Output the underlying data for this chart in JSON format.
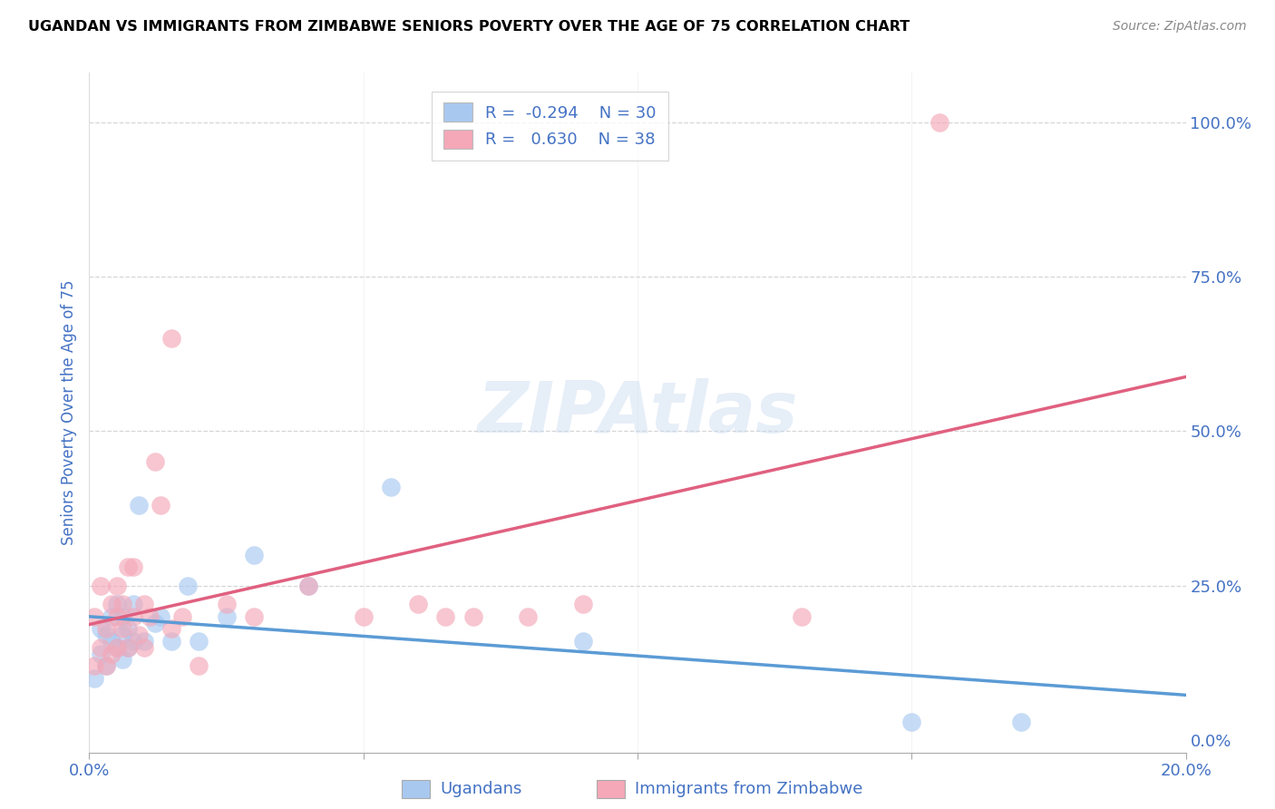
{
  "title": "UGANDAN VS IMMIGRANTS FROM ZIMBABWE SENIORS POVERTY OVER THE AGE OF 75 CORRELATION CHART",
  "source": "Source: ZipAtlas.com",
  "ylabel": "Seniors Poverty Over the Age of 75",
  "xlim": [
    0.0,
    0.2
  ],
  "ylim": [
    -0.02,
    1.08
  ],
  "x_ticks": [
    0.0,
    0.05,
    0.1,
    0.15,
    0.2
  ],
  "x_tick_labels": [
    "0.0%",
    "",
    "",
    "",
    "20.0%"
  ],
  "y_ticks_right": [
    0.0,
    0.25,
    0.5,
    0.75,
    1.0
  ],
  "y_tick_labels_right": [
    "0.0%",
    "25.0%",
    "50.0%",
    "75.0%",
    "100.0%"
  ],
  "ugandan_color": "#a8c8f0",
  "zimbabwe_color": "#f4a8b8",
  "ugandan_line_color": "#5b9bd5",
  "zimbabwe_line_color": "#e06080",
  "ugandan_R": -0.294,
  "ugandan_N": 30,
  "zimbabwe_R": 0.63,
  "zimbabwe_N": 38,
  "watermark": "ZIPAtlas",
  "legend_label_1": "Ugandans",
  "legend_label_2": "Immigrants from Zimbabwe",
  "ugandan_x": [
    0.001,
    0.002,
    0.002,
    0.003,
    0.003,
    0.004,
    0.004,
    0.005,
    0.005,
    0.006,
    0.006,
    0.006,
    0.007,
    0.007,
    0.008,
    0.008,
    0.009,
    0.01,
    0.012,
    0.013,
    0.015,
    0.018,
    0.02,
    0.025,
    0.03,
    0.04,
    0.055,
    0.09,
    0.15,
    0.17
  ],
  "ugandan_y": [
    0.1,
    0.14,
    0.18,
    0.12,
    0.17,
    0.16,
    0.2,
    0.15,
    0.22,
    0.13,
    0.17,
    0.2,
    0.18,
    0.15,
    0.22,
    0.16,
    0.38,
    0.16,
    0.19,
    0.2,
    0.16,
    0.25,
    0.16,
    0.2,
    0.3,
    0.25,
    0.41,
    0.16,
    0.03,
    0.03
  ],
  "zimbabwe_x": [
    0.001,
    0.001,
    0.002,
    0.002,
    0.003,
    0.003,
    0.004,
    0.004,
    0.005,
    0.005,
    0.005,
    0.006,
    0.006,
    0.007,
    0.007,
    0.008,
    0.008,
    0.009,
    0.01,
    0.01,
    0.011,
    0.012,
    0.013,
    0.015,
    0.015,
    0.017,
    0.02,
    0.025,
    0.03,
    0.04,
    0.05,
    0.06,
    0.065,
    0.07,
    0.08,
    0.09,
    0.13,
    0.155
  ],
  "zimbabwe_y": [
    0.12,
    0.2,
    0.15,
    0.25,
    0.12,
    0.18,
    0.14,
    0.22,
    0.15,
    0.2,
    0.25,
    0.18,
    0.22,
    0.15,
    0.28,
    0.2,
    0.28,
    0.17,
    0.15,
    0.22,
    0.2,
    0.45,
    0.38,
    0.18,
    0.65,
    0.2,
    0.12,
    0.22,
    0.2,
    0.25,
    0.2,
    0.22,
    0.2,
    0.2,
    0.2,
    0.22,
    0.2,
    1.0
  ]
}
